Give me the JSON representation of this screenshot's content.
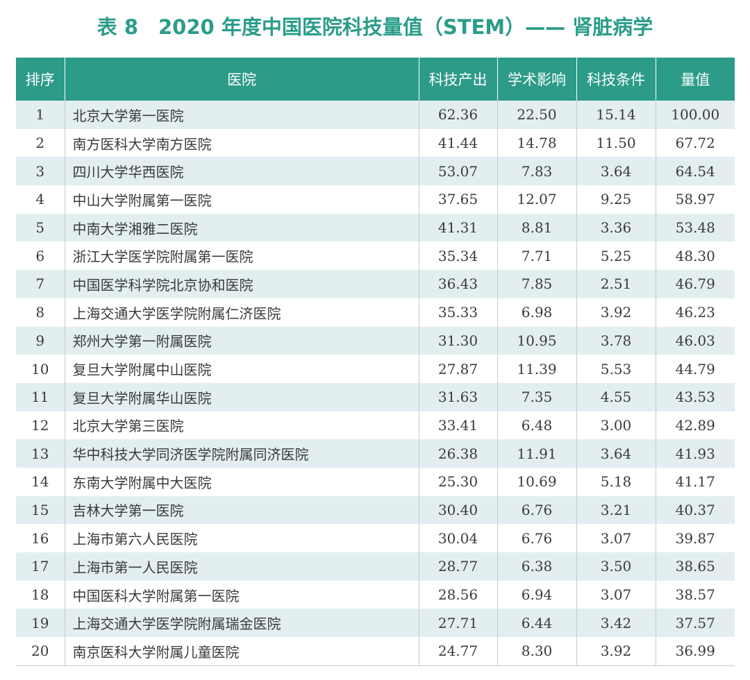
{
  "title": "表 8　2020 年度中国医院科技量值（STEM）—— 肾脏病学",
  "table": {
    "headers": {
      "rank": "排序",
      "hospital": "医院",
      "output": "科技产出",
      "impact": "学术影响",
      "conditions": "科技条件",
      "value": "量值"
    },
    "rows": [
      {
        "rank": "1",
        "hospital": "北京大学第一医院",
        "output": "62.36",
        "impact": "22.50",
        "conditions": "15.14",
        "value": "100.00"
      },
      {
        "rank": "2",
        "hospital": "南方医科大学南方医院",
        "output": "41.44",
        "impact": "14.78",
        "conditions": "11.50",
        "value": "67.72"
      },
      {
        "rank": "3",
        "hospital": "四川大学华西医院",
        "output": "53.07",
        "impact": "7.83",
        "conditions": "3.64",
        "value": "64.54"
      },
      {
        "rank": "4",
        "hospital": "中山大学附属第一医院",
        "output": "37.65",
        "impact": "12.07",
        "conditions": "9.25",
        "value": "58.97"
      },
      {
        "rank": "5",
        "hospital": "中南大学湘雅二医院",
        "output": "41.31",
        "impact": "8.81",
        "conditions": "3.36",
        "value": "53.48"
      },
      {
        "rank": "6",
        "hospital": "浙江大学医学院附属第一医院",
        "output": "35.34",
        "impact": "7.71",
        "conditions": "5.25",
        "value": "48.30"
      },
      {
        "rank": "7",
        "hospital": "中国医学科学院北京协和医院",
        "output": "36.43",
        "impact": "7.85",
        "conditions": "2.51",
        "value": "46.79"
      },
      {
        "rank": "8",
        "hospital": "上海交通大学医学院附属仁济医院",
        "output": "35.33",
        "impact": "6.98",
        "conditions": "3.92",
        "value": "46.23"
      },
      {
        "rank": "9",
        "hospital": "郑州大学第一附属医院",
        "output": "31.30",
        "impact": "10.95",
        "conditions": "3.78",
        "value": "46.03"
      },
      {
        "rank": "10",
        "hospital": "复旦大学附属中山医院",
        "output": "27.87",
        "impact": "11.39",
        "conditions": "5.53",
        "value": "44.79"
      },
      {
        "rank": "11",
        "hospital": "复旦大学附属华山医院",
        "output": "31.63",
        "impact": "7.35",
        "conditions": "4.55",
        "value": "43.53"
      },
      {
        "rank": "12",
        "hospital": "北京大学第三医院",
        "output": "33.41",
        "impact": "6.48",
        "conditions": "3.00",
        "value": "42.89"
      },
      {
        "rank": "13",
        "hospital": "华中科技大学同济医学院附属同济医院",
        "output": "26.38",
        "impact": "11.91",
        "conditions": "3.64",
        "value": "41.93"
      },
      {
        "rank": "14",
        "hospital": "东南大学附属中大医院",
        "output": "25.30",
        "impact": "10.69",
        "conditions": "5.18",
        "value": "41.17"
      },
      {
        "rank": "15",
        "hospital": "吉林大学第一医院",
        "output": "30.40",
        "impact": "6.76",
        "conditions": "3.21",
        "value": "40.37"
      },
      {
        "rank": "16",
        "hospital": "上海市第六人民医院",
        "output": "30.04",
        "impact": "6.76",
        "conditions": "3.07",
        "value": "39.87"
      },
      {
        "rank": "17",
        "hospital": "上海市第一人民医院",
        "output": "28.77",
        "impact": "6.38",
        "conditions": "3.50",
        "value": "38.65"
      },
      {
        "rank": "18",
        "hospital": "中国医科大学附属第一医院",
        "output": "28.56",
        "impact": "6.94",
        "conditions": "3.07",
        "value": "38.57"
      },
      {
        "rank": "19",
        "hospital": "上海交通大学医学院附属瑞金医院",
        "output": "27.71",
        "impact": "6.44",
        "conditions": "3.42",
        "value": "37.57"
      },
      {
        "rank": "20",
        "hospital": "南京医科大学附属儿童医院",
        "output": "24.77",
        "impact": "8.30",
        "conditions": "3.92",
        "value": "36.99"
      }
    ]
  },
  "colors": {
    "header_bg": "#2c9b88",
    "title_text": "#2a9d8a",
    "stripe_bg": "#e3eef1"
  }
}
